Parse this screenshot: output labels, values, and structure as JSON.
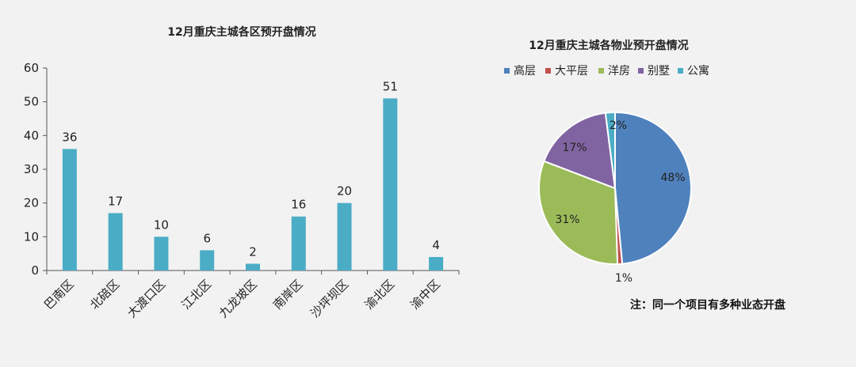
{
  "chart_data": [
    {
      "type": "bar",
      "title": "12月重庆主城各区预开盘情况",
      "categories": [
        "巴南区",
        "北碚区",
        "大渡口区",
        "江北区",
        "九龙坡区",
        "南岸区",
        "沙坪坝区",
        "渝北区",
        "渝中区"
      ],
      "values": [
        36,
        17,
        10,
        6,
        2,
        16,
        20,
        51,
        4
      ],
      "ylim": [
        0,
        60
      ],
      "yticks": [
        0,
        10,
        20,
        30,
        40,
        50,
        60
      ],
      "xlabel": "",
      "ylabel": "",
      "grid": false,
      "color": "#4bacc6"
    },
    {
      "type": "pie",
      "title": "12月重庆主城各物业预开盘情况",
      "labels": [
        "高层",
        "大平层",
        "洋房",
        "别墅",
        "公寓"
      ],
      "values": [
        48,
        1,
        31,
        17,
        2
      ],
      "value_labels": [
        "48%",
        "1%",
        "31%",
        "17%",
        "2%"
      ],
      "colors": [
        "#4f81bd",
        "#c0504d",
        "#9bbb59",
        "#8064a2",
        "#4bacc6"
      ],
      "legend": "top"
    }
  ],
  "note": "注：同一个项目有多种业态开盘"
}
